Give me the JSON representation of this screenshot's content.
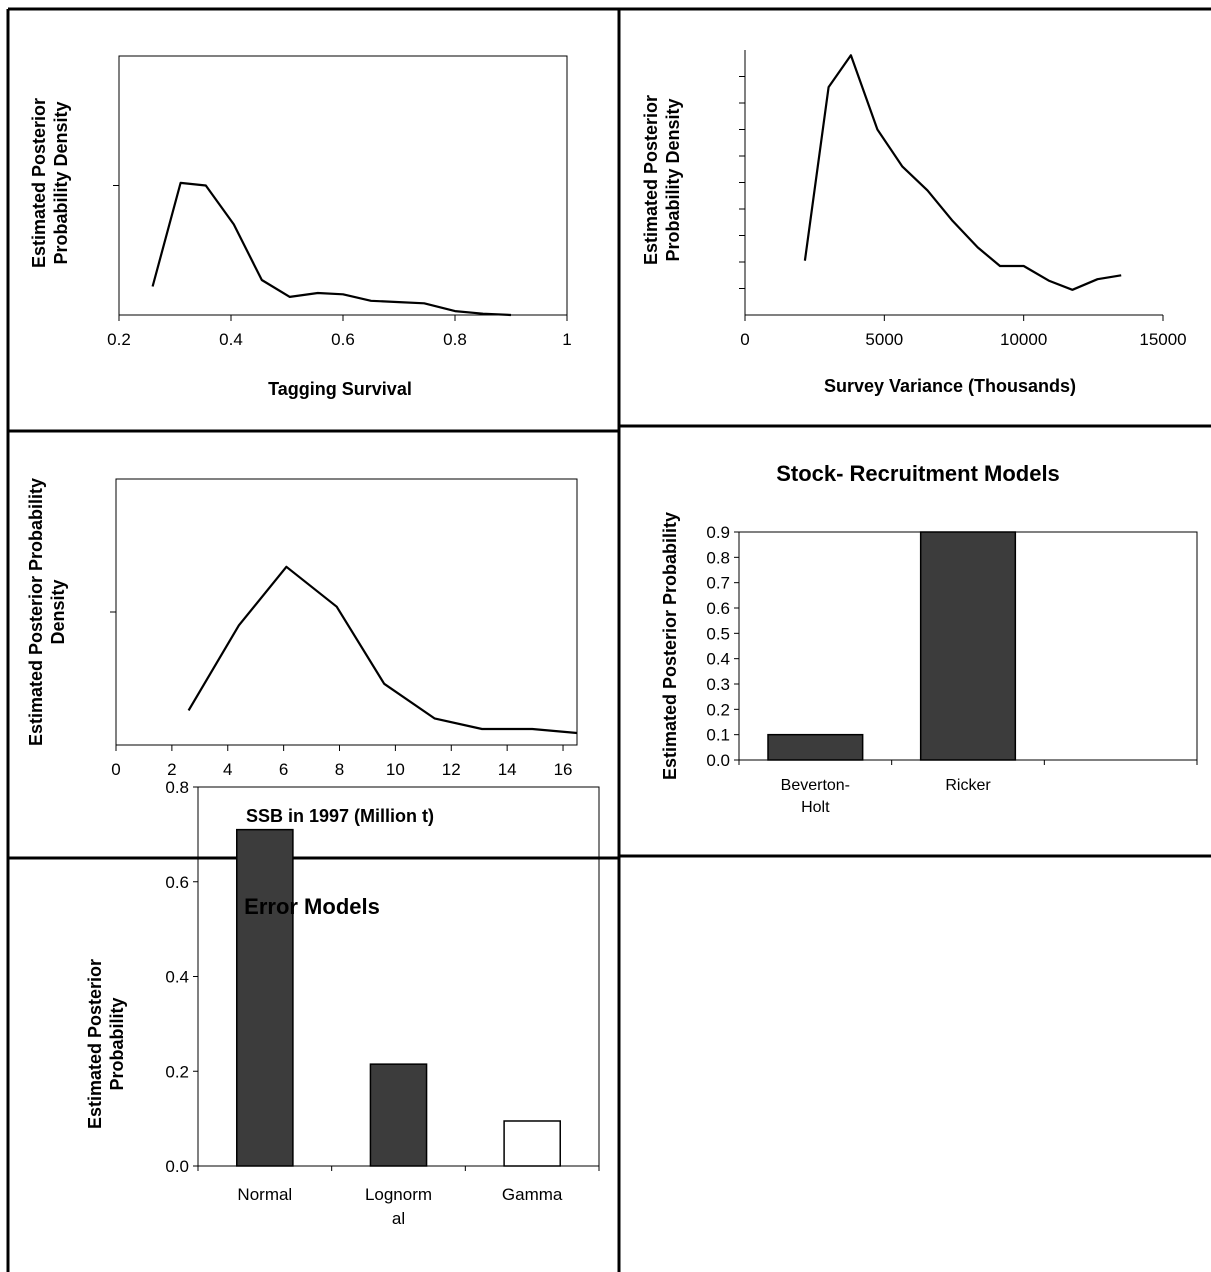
{
  "colors": {
    "border": "#000000",
    "bar_dark": "#3c3c3c",
    "bar_light": "#ffffff",
    "line": "#000000"
  },
  "chart_data": [
    {
      "type": "line",
      "xlabel": "Tagging Survival",
      "ylabel": [
        "Estimated Posterior",
        "Probability Density"
      ],
      "xlim": [
        0.2,
        1.0
      ],
      "x_ticks": [
        "0.2",
        "0.4",
        "0.6",
        "0.8",
        "1"
      ],
      "x_tick_values": [
        0.2,
        0.4,
        0.6,
        0.8,
        1.0
      ],
      "ylim": [
        0,
        1
      ],
      "y_tick_values": [
        0.5
      ],
      "grid": false,
      "series": [
        {
          "x": [
            0.26,
            0.31,
            0.355,
            0.405,
            0.455,
            0.505,
            0.555,
            0.6,
            0.65,
            0.7,
            0.745,
            0.8,
            0.85,
            0.9
          ],
          "y": [
            0.11,
            0.51,
            0.5,
            0.35,
            0.135,
            0.07,
            0.085,
            0.08,
            0.055,
            0.05,
            0.045,
            0.015,
            0.005,
            0.0
          ]
        }
      ]
    },
    {
      "type": "line",
      "xlabel": "Survey Variance (Thousands)",
      "ylabel": [
        "Estimated Posterior",
        "Probability Density"
      ],
      "xlim": [
        0,
        15000
      ],
      "x_ticks": [
        "0",
        "5000",
        "10000",
        "15000"
      ],
      "x_tick_values": [
        0,
        5000,
        10000,
        15000
      ],
      "ylim": [
        0,
        10
      ],
      "y_tick_values": [
        1,
        2,
        3,
        4,
        5,
        6,
        7,
        8,
        9
      ],
      "grid": false,
      "series": [
        {
          "x": [
            2150,
            3000,
            3800,
            4750,
            5650,
            6550,
            7450,
            8350,
            9150,
            10000,
            10900,
            11750,
            12650,
            13500
          ],
          "y": [
            2.05,
            8.6,
            9.8,
            7.0,
            5.6,
            4.7,
            3.55,
            2.55,
            1.85,
            1.85,
            1.3,
            0.95,
            1.35,
            1.5
          ]
        }
      ]
    },
    {
      "type": "line",
      "xlabel": "SSB in 1997 (Million t)",
      "ylabel": [
        "Estimated Posterior Probability",
        "Density"
      ],
      "xlim": [
        0,
        16.5
      ],
      "x_ticks": [
        "0",
        "2",
        "4",
        "6",
        "8",
        "10",
        "12",
        "14",
        "16"
      ],
      "x_tick_values": [
        0,
        2,
        4,
        6,
        8,
        10,
        12,
        14,
        16
      ],
      "ylim": [
        0,
        1
      ],
      "y_tick_values": [
        0.5
      ],
      "grid": false,
      "series": [
        {
          "x": [
            2.6,
            4.4,
            6.1,
            7.9,
            9.6,
            11.4,
            13.1,
            14.9,
            16.5
          ],
          "y": [
            0.13,
            0.45,
            0.67,
            0.52,
            0.23,
            0.1,
            0.06,
            0.06,
            0.045
          ]
        }
      ]
    },
    {
      "type": "bar",
      "title": "Stock- Recruitment  Models",
      "ylabel": "Estimated Posterior Probability",
      "categories": [
        [
          "Beverton-",
          "Holt"
        ],
        [
          "Ricker"
        ],
        [
          ""
        ]
      ],
      "values": [
        0.1,
        0.9,
        0
      ],
      "ylim": [
        0,
        0.9
      ],
      "y_ticks": [
        "0.0",
        "0.1",
        "0.2",
        "0.3",
        "0.4",
        "0.5",
        "0.6",
        "0.7",
        "0.8",
        "0.9"
      ],
      "y_tick_values": [
        0,
        0.1,
        0.2,
        0.3,
        0.4,
        0.5,
        0.6,
        0.7,
        0.8,
        0.9
      ],
      "bar_fill": [
        "dark",
        "dark",
        "light"
      ],
      "grid": false
    },
    {
      "type": "bar",
      "title": "Error Models",
      "ylabel": [
        "Estimated Posterior",
        "Probability"
      ],
      "categories": [
        [
          "Normal"
        ],
        [
          "Lognorm",
          "al"
        ],
        [
          "Gamma"
        ]
      ],
      "values": [
        0.71,
        0.215,
        0.095
      ],
      "ylim": [
        0,
        0.8
      ],
      "y_ticks": [
        "0.0",
        "0.2",
        "0.4",
        "0.6",
        "0.8"
      ],
      "y_tick_values": [
        0,
        0.2,
        0.4,
        0.6,
        0.8
      ],
      "bar_fill": [
        "dark",
        "dark",
        "light"
      ],
      "grid": false
    }
  ]
}
